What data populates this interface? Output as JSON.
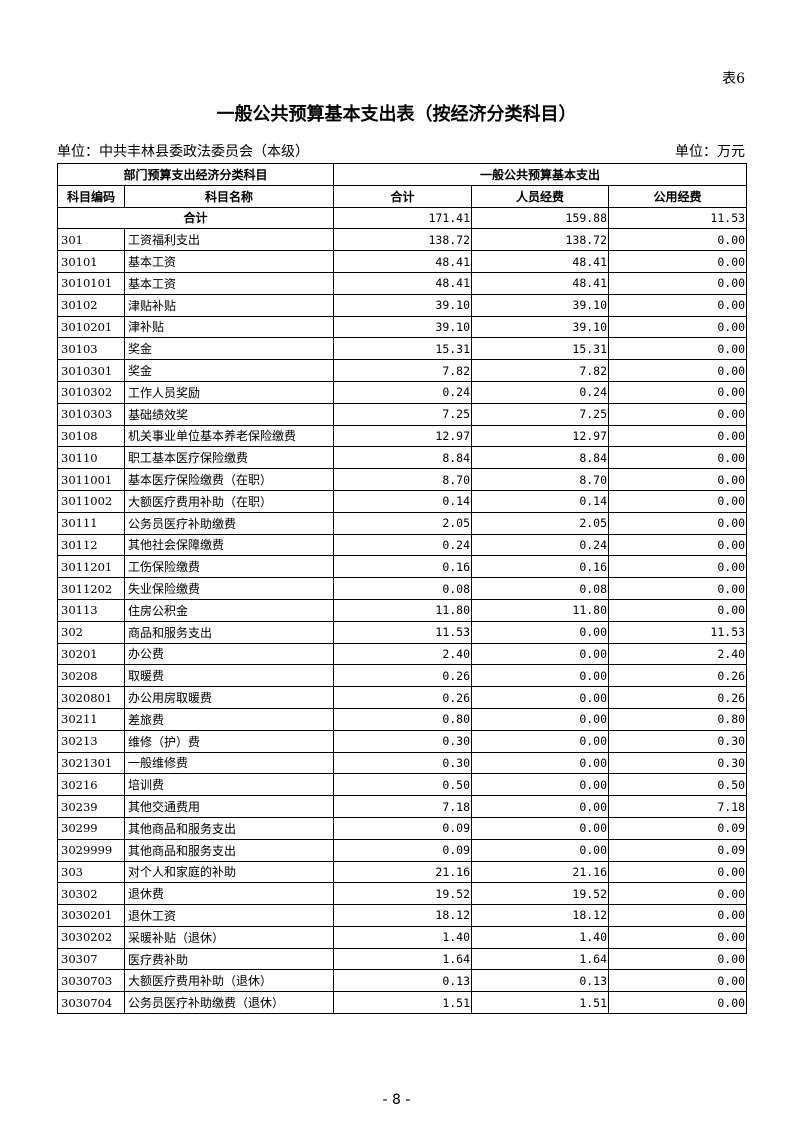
{
  "table_tag": "表6",
  "title": "一般公共预算基本支出表（按经济分类科目）",
  "unit_org": "单位：中共丰林县委政法委员会（本级）",
  "unit_currency": "单位：万元",
  "headers": {
    "group_left": "部门预算支出经济分类科目",
    "group_right": "一般公共预算基本支出",
    "code": "科目编码",
    "name": "科目名称",
    "total": "合计",
    "personnel": "人员经费",
    "public": "公用经费"
  },
  "total_row": {
    "label": "合计",
    "total": "171.41",
    "personnel": "159.88",
    "public": "11.53"
  },
  "rows": [
    [
      "301",
      "工资福利支出",
      "138.72",
      "138.72",
      "0.00"
    ],
    [
      "30101",
      "基本工资",
      "48.41",
      "48.41",
      "0.00"
    ],
    [
      "3010101",
      "基本工资",
      "48.41",
      "48.41",
      "0.00"
    ],
    [
      "30102",
      "津贴补贴",
      "39.10",
      "39.10",
      "0.00"
    ],
    [
      "3010201",
      "津补贴",
      "39.10",
      "39.10",
      "0.00"
    ],
    [
      "30103",
      "奖金",
      "15.31",
      "15.31",
      "0.00"
    ],
    [
      "3010301",
      "奖金",
      "7.82",
      "7.82",
      "0.00"
    ],
    [
      "3010302",
      "工作人员奖励",
      "0.24",
      "0.24",
      "0.00"
    ],
    [
      "3010303",
      "基础绩效奖",
      "7.25",
      "7.25",
      "0.00"
    ],
    [
      "30108",
      "机关事业单位基本养老保险缴费",
      "12.97",
      "12.97",
      "0.00"
    ],
    [
      "30110",
      "职工基本医疗保险缴费",
      "8.84",
      "8.84",
      "0.00"
    ],
    [
      "3011001",
      "基本医疗保险缴费（在职）",
      "8.70",
      "8.70",
      "0.00"
    ],
    [
      "3011002",
      "大额医疗费用补助（在职）",
      "0.14",
      "0.14",
      "0.00"
    ],
    [
      "30111",
      "公务员医疗补助缴费",
      "2.05",
      "2.05",
      "0.00"
    ],
    [
      "30112",
      "其他社会保障缴费",
      "0.24",
      "0.24",
      "0.00"
    ],
    [
      "3011201",
      "工伤保险缴费",
      "0.16",
      "0.16",
      "0.00"
    ],
    [
      "3011202",
      "失业保险缴费",
      "0.08",
      "0.08",
      "0.00"
    ],
    [
      "30113",
      "住房公积金",
      "11.80",
      "11.80",
      "0.00"
    ],
    [
      "302",
      "商品和服务支出",
      "11.53",
      "0.00",
      "11.53"
    ],
    [
      "30201",
      "办公费",
      "2.40",
      "0.00",
      "2.40"
    ],
    [
      "30208",
      "取暖费",
      "0.26",
      "0.00",
      "0.26"
    ],
    [
      "3020801",
      "办公用房取暖费",
      "0.26",
      "0.00",
      "0.26"
    ],
    [
      "30211",
      "差旅费",
      "0.80",
      "0.00",
      "0.80"
    ],
    [
      "30213",
      "维修（护）费",
      "0.30",
      "0.00",
      "0.30"
    ],
    [
      "3021301",
      "一般维修费",
      "0.30",
      "0.00",
      "0.30"
    ],
    [
      "30216",
      "培训费",
      "0.50",
      "0.00",
      "0.50"
    ],
    [
      "30239",
      "其他交通费用",
      "7.18",
      "0.00",
      "7.18"
    ],
    [
      "30299",
      "其他商品和服务支出",
      "0.09",
      "0.00",
      "0.09"
    ],
    [
      "3029999",
      "其他商品和服务支出",
      "0.09",
      "0.00",
      "0.09"
    ],
    [
      "303",
      "对个人和家庭的补助",
      "21.16",
      "21.16",
      "0.00"
    ],
    [
      "30302",
      "退休费",
      "19.52",
      "19.52",
      "0.00"
    ],
    [
      "3030201",
      "退休工资",
      "18.12",
      "18.12",
      "0.00"
    ],
    [
      "3030202",
      "采暖补贴（退休）",
      "1.40",
      "1.40",
      "0.00"
    ],
    [
      "30307",
      "医疗费补助",
      "1.64",
      "1.64",
      "0.00"
    ],
    [
      "3030703",
      "大额医疗费用补助（退休）",
      "0.13",
      "0.13",
      "0.00"
    ],
    [
      "3030704",
      "公务员医疗补助缴费（退休）",
      "1.51",
      "1.51",
      "0.00"
    ]
  ],
  "page_number": "- 8 -"
}
